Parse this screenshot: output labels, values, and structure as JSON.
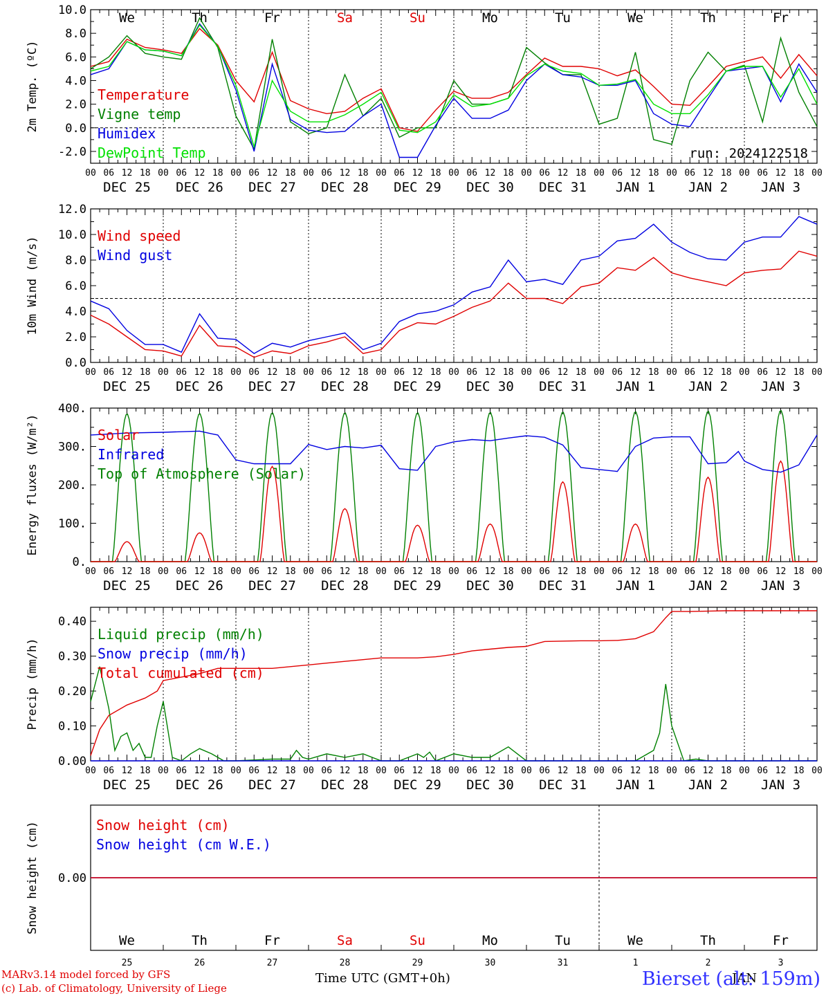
{
  "days": {
    "weekdays": [
      "We",
      "Th",
      "Fr",
      "Sa",
      "Su",
      "Mo",
      "Tu",
      "We",
      "Th",
      "Fr"
    ],
    "weekend_flags": [
      false,
      false,
      false,
      true,
      true,
      false,
      false,
      false,
      false,
      false
    ],
    "dates": [
      "DEC 25",
      "DEC 26",
      "DEC 27",
      "DEC 28",
      "DEC 29",
      "DEC 30",
      "DEC 31",
      "JAN  1",
      "JAN  2",
      "JAN  3"
    ],
    "hour_ticks": [
      "00",
      "06",
      "12",
      "18"
    ],
    "last_hour_tick": "00",
    "day_numbers": [
      "25",
      "26",
      "27",
      "28",
      "29",
      "30",
      "31",
      "1",
      "2",
      "3"
    ]
  },
  "colors": {
    "red": "#e00000",
    "green": "#008000",
    "blue": "#0000e0",
    "lightgreen": "#00e000"
  },
  "footer": {
    "credit_line1": "MARv3.14 model forced by GFS",
    "credit_line2": "(c) Lab. of Climatology, University of Liege",
    "time_label": "Time UTC (GMT+0h)",
    "month_label": "DEC",
    "month_label2": "JAN",
    "station": "Bierset (alt: 159m)"
  },
  "chart_data": [
    {
      "type": "line",
      "ylabel": "2m Temp. (ºC)",
      "ylim": [
        -3,
        10
      ],
      "yticks": [
        "-2.0",
        "0.0",
        "2.0",
        "4.0",
        "6.0",
        "8.0",
        "10.0"
      ],
      "ytick_values": [
        -2,
        0,
        2,
        4,
        6,
        8,
        10
      ],
      "reference_line": 0,
      "annotation": "run: 2024122518",
      "x_unit": "hours since Dec 25 00 UTC",
      "series": [
        {
          "name": "Temperature",
          "color": "red",
          "x": [
            0,
            6,
            12,
            18,
            24,
            30,
            36,
            42,
            48,
            54,
            60,
            66,
            72,
            78,
            84,
            90,
            96,
            102,
            108,
            114,
            120,
            126,
            132,
            138,
            144,
            150,
            156,
            162,
            168,
            174,
            180,
            186,
            192,
            198,
            204,
            210,
            216,
            222,
            228,
            234,
            240
          ],
          "values": [
            5.2,
            5.6,
            7.5,
            6.8,
            6.6,
            6.3,
            8.4,
            7.0,
            4.0,
            2.2,
            6.4,
            2.3,
            1.6,
            1.2,
            1.4,
            2.5,
            3.3,
            0.0,
            -0.3,
            1.5,
            3.1,
            2.5,
            2.5,
            3.0,
            4.5,
            5.9,
            5.2,
            5.2,
            5.0,
            4.4,
            4.9,
            3.5,
            2.0,
            1.9,
            3.5,
            5.2,
            5.6,
            6.0,
            4.2,
            6.2,
            4.4
          ]
        },
        {
          "name": "Vigne temp",
          "color": "green",
          "x": [
            0,
            6,
            12,
            18,
            24,
            30,
            36,
            42,
            48,
            54,
            60,
            66,
            72,
            78,
            84,
            90,
            96,
            102,
            108,
            114,
            120,
            126,
            132,
            138,
            144,
            150,
            156,
            162,
            168,
            174,
            180,
            186,
            192,
            198,
            204,
            210,
            216,
            222,
            228,
            234,
            240
          ],
          "values": [
            5.0,
            6.0,
            7.8,
            6.3,
            6.0,
            5.8,
            9.3,
            6.8,
            1.0,
            -1.8,
            7.5,
            0.5,
            -0.5,
            0.0,
            4.5,
            1.0,
            2.5,
            -0.8,
            0.0,
            0.0,
            4.0,
            2.0,
            2.0,
            2.5,
            6.8,
            5.5,
            4.5,
            4.5,
            0.3,
            0.8,
            6.4,
            -1.0,
            -1.4,
            4.0,
            6.4,
            4.8,
            5.3,
            0.5,
            7.6,
            3.0,
            0.1
          ]
        },
        {
          "name": "Humidex",
          "color": "blue",
          "x": [
            0,
            6,
            12,
            18,
            24,
            30,
            36,
            42,
            48,
            54,
            60,
            66,
            72,
            78,
            84,
            90,
            96,
            102,
            108,
            114,
            120,
            126,
            132,
            138,
            144,
            150,
            156,
            162,
            168,
            174,
            180,
            186,
            192,
            198,
            204,
            210,
            216,
            222,
            228,
            234,
            240
          ],
          "values": [
            4.5,
            5.0,
            7.3,
            6.6,
            6.5,
            6.1,
            8.8,
            6.9,
            3.2,
            -2.0,
            5.4,
            0.7,
            -0.2,
            -0.4,
            -0.3,
            1.0,
            2.0,
            -2.5,
            -2.5,
            0.2,
            2.5,
            0.8,
            0.8,
            1.5,
            4.0,
            5.4,
            4.5,
            4.3,
            3.6,
            3.6,
            4.0,
            1.2,
            0.3,
            0.1,
            2.5,
            4.8,
            5.0,
            5.2,
            2.2,
            5.4,
            3.0
          ]
        },
        {
          "name": "DewPoint Temp",
          "color": "lightgreen",
          "x": [
            0,
            6,
            12,
            18,
            24,
            30,
            36,
            42,
            48,
            54,
            60,
            66,
            72,
            78,
            84,
            90,
            96,
            102,
            108,
            114,
            120,
            126,
            132,
            138,
            144,
            150,
            156,
            162,
            168,
            174,
            180,
            186,
            192,
            198,
            204,
            210,
            216,
            222,
            228,
            234,
            240
          ],
          "values": [
            4.8,
            5.2,
            7.3,
            6.6,
            6.5,
            6.1,
            8.7,
            6.9,
            3.6,
            -1.6,
            4.0,
            1.4,
            0.5,
            0.5,
            1.1,
            2.0,
            3.0,
            -0.2,
            -0.4,
            0.5,
            2.8,
            1.8,
            2.0,
            2.5,
            4.4,
            5.4,
            4.8,
            4.6,
            3.6,
            3.7,
            4.1,
            2.0,
            1.2,
            1.2,
            2.8,
            4.8,
            5.2,
            5.2,
            2.6,
            5.0,
            2.0
          ]
        }
      ]
    },
    {
      "type": "line",
      "ylabel": "10m Wind (m/s)",
      "ylim": [
        0,
        12
      ],
      "yticks": [
        "0.0",
        "2.0",
        "4.0",
        "6.0",
        "8.0",
        "10.0",
        "12.0"
      ],
      "ytick_values": [
        0,
        2,
        4,
        6,
        8,
        10,
        12
      ],
      "reference_line": 5,
      "x_unit": "hours since Dec 25 00 UTC",
      "series": [
        {
          "name": "Wind speed",
          "color": "red",
          "x": [
            0,
            6,
            12,
            18,
            24,
            30,
            36,
            42,
            48,
            54,
            60,
            66,
            72,
            78,
            84,
            90,
            96,
            102,
            108,
            114,
            120,
            126,
            132,
            138,
            144,
            150,
            156,
            162,
            168,
            174,
            180,
            186,
            192,
            198,
            204,
            210,
            216,
            222,
            228,
            234,
            240
          ],
          "values": [
            3.7,
            3.0,
            2.0,
            1.0,
            0.9,
            0.5,
            2.9,
            1.3,
            1.2,
            0.4,
            0.9,
            0.7,
            1.3,
            1.6,
            2.0,
            0.7,
            1.0,
            2.5,
            3.1,
            3.0,
            3.6,
            4.3,
            4.8,
            6.2,
            5.0,
            5.0,
            4.6,
            5.9,
            6.2,
            7.4,
            7.2,
            8.2,
            7.0,
            6.6,
            6.3,
            6.0,
            7.0,
            7.2,
            7.3,
            8.7,
            8.3
          ]
        },
        {
          "name": "Wind gust",
          "color": "blue",
          "x": [
            0,
            6,
            12,
            18,
            24,
            30,
            36,
            42,
            48,
            54,
            60,
            66,
            72,
            78,
            84,
            90,
            96,
            102,
            108,
            114,
            120,
            126,
            132,
            138,
            144,
            150,
            156,
            162,
            168,
            174,
            180,
            186,
            192,
            198,
            204,
            210,
            216,
            222,
            228,
            234,
            240
          ],
          "values": [
            4.8,
            4.2,
            2.5,
            1.4,
            1.4,
            0.8,
            3.8,
            1.9,
            1.8,
            0.7,
            1.5,
            1.2,
            1.7,
            2.0,
            2.3,
            1.0,
            1.5,
            3.2,
            3.8,
            4.0,
            4.5,
            5.5,
            5.9,
            8.0,
            6.3,
            6.5,
            6.1,
            8.0,
            8.3,
            9.5,
            9.7,
            10.8,
            9.4,
            8.6,
            8.1,
            8.0,
            9.4,
            9.8,
            9.8,
            11.4,
            10.8
          ]
        }
      ]
    },
    {
      "type": "line",
      "ylabel": "Energy fluxes (W/m²)",
      "ylim": [
        0,
        400
      ],
      "yticks": [
        "0.",
        "100.",
        "200.",
        "300.",
        "400."
      ],
      "ytick_values": [
        0,
        100,
        200,
        300,
        400
      ],
      "x_unit": "hours since Dec 25 00 UTC",
      "solar_noon_hour": 12,
      "series": [
        {
          "name": "Solar",
          "color": "red",
          "daily_peaks": [
            52,
            75,
            248,
            138,
            95,
            98,
            208,
            98,
            220,
            262
          ]
        },
        {
          "name": "Infrared",
          "color": "blue",
          "x": [
            0,
            12,
            24,
            36,
            40,
            42,
            48,
            54,
            60,
            66,
            72,
            78,
            84,
            90,
            96,
            102,
            108,
            114,
            120,
            126,
            132,
            138,
            144,
            150,
            156,
            162,
            168,
            174,
            180,
            186,
            192,
            198,
            204,
            210,
            214,
            216,
            222,
            228,
            234,
            240
          ],
          "values": [
            330,
            335,
            337,
            340,
            333,
            330,
            265,
            255,
            255,
            255,
            305,
            292,
            300,
            296,
            303,
            242,
            238,
            300,
            312,
            318,
            315,
            322,
            328,
            324,
            304,
            245,
            240,
            235,
            300,
            322,
            325,
            325,
            255,
            258,
            287,
            262,
            240,
            233,
            252,
            330
          ]
        },
        {
          "name": "Top of Atmosphere (Solar)",
          "color": "green",
          "daily_peaks": [
            385,
            386,
            388,
            388,
            388,
            389,
            390,
            391,
            392,
            394
          ]
        }
      ]
    },
    {
      "type": "line",
      "ylabel": "Precip (mm/h)",
      "ylim": [
        0,
        0.44
      ],
      "yticks": [
        "0.00",
        "0.10",
        "0.20",
        "0.30",
        "0.40"
      ],
      "ytick_values": [
        0,
        0.1,
        0.2,
        0.3,
        0.4
      ],
      "x_unit": "hours since Dec 25 00 UTC",
      "series": [
        {
          "name": "Liquid precip (mm/h)",
          "color": "green",
          "x": [
            0,
            3,
            6,
            8,
            10,
            12,
            14,
            16,
            18,
            20,
            22,
            24,
            27,
            30,
            33,
            36,
            40,
            44,
            48,
            60,
            66,
            68,
            70,
            72,
            78,
            84,
            90,
            96,
            102,
            108,
            110,
            112,
            114,
            120,
            126,
            132,
            138,
            144,
            146,
            150,
            156,
            162,
            168,
            174,
            180,
            186,
            188,
            190,
            192,
            196,
            200,
            204,
            210,
            240
          ],
          "values": [
            0.17,
            0.27,
            0.15,
            0.03,
            0.07,
            0.08,
            0.03,
            0.05,
            0.01,
            0.01,
            0.1,
            0.17,
            0.01,
            0.0,
            0.02,
            0.035,
            0.02,
            0.0,
            0.0,
            0.005,
            0.005,
            0.03,
            0.01,
            0.005,
            0.02,
            0.01,
            0.02,
            0.0,
            0.0,
            0.02,
            0.01,
            0.025,
            0.0,
            0.02,
            0.01,
            0.01,
            0.04,
            0.0,
            0.0,
            0.0,
            0.0,
            0.0,
            0.0,
            0.0,
            0.0,
            0.03,
            0.08,
            0.22,
            0.1,
            0.0,
            0.005,
            0.0,
            0.0,
            0.0
          ]
        },
        {
          "name": "Snow precip (mm/h)",
          "color": "blue",
          "x": [
            0,
            240
          ],
          "values": [
            0,
            0
          ]
        },
        {
          "name": "Total cumulated (cm)",
          "color": "red",
          "x": [
            0,
            3,
            6,
            12,
            18,
            22,
            24,
            27,
            30,
            36,
            42,
            48,
            60,
            72,
            78,
            84,
            90,
            96,
            108,
            114,
            120,
            126,
            132,
            138,
            144,
            150,
            156,
            162,
            168,
            174,
            180,
            186,
            190,
            192,
            198,
            210,
            240
          ],
          "values": [
            0.015,
            0.09,
            0.13,
            0.16,
            0.18,
            0.2,
            0.23,
            0.235,
            0.24,
            0.25,
            0.265,
            0.265,
            0.265,
            0.275,
            0.28,
            0.285,
            0.29,
            0.295,
            0.295,
            0.298,
            0.305,
            0.315,
            0.32,
            0.325,
            0.328,
            0.342,
            0.343,
            0.344,
            0.344,
            0.345,
            0.35,
            0.37,
            0.41,
            0.428,
            0.428,
            0.43,
            0.43
          ]
        }
      ]
    },
    {
      "type": "line",
      "ylabel": "Snow height (cm)",
      "yticks": [
        "0.00"
      ],
      "ytick_values": [
        0
      ],
      "ylim": [
        -1,
        1
      ],
      "x_unit": "hours since Dec 25 00 UTC",
      "series": [
        {
          "name": "Snow height (cm)",
          "color": "red",
          "x": [
            0,
            240
          ],
          "values": [
            0,
            0
          ]
        },
        {
          "name": "Snow height (cm W.E.)",
          "color": "blue",
          "x": [
            0,
            240
          ],
          "values": [
            0,
            0
          ]
        }
      ]
    }
  ]
}
